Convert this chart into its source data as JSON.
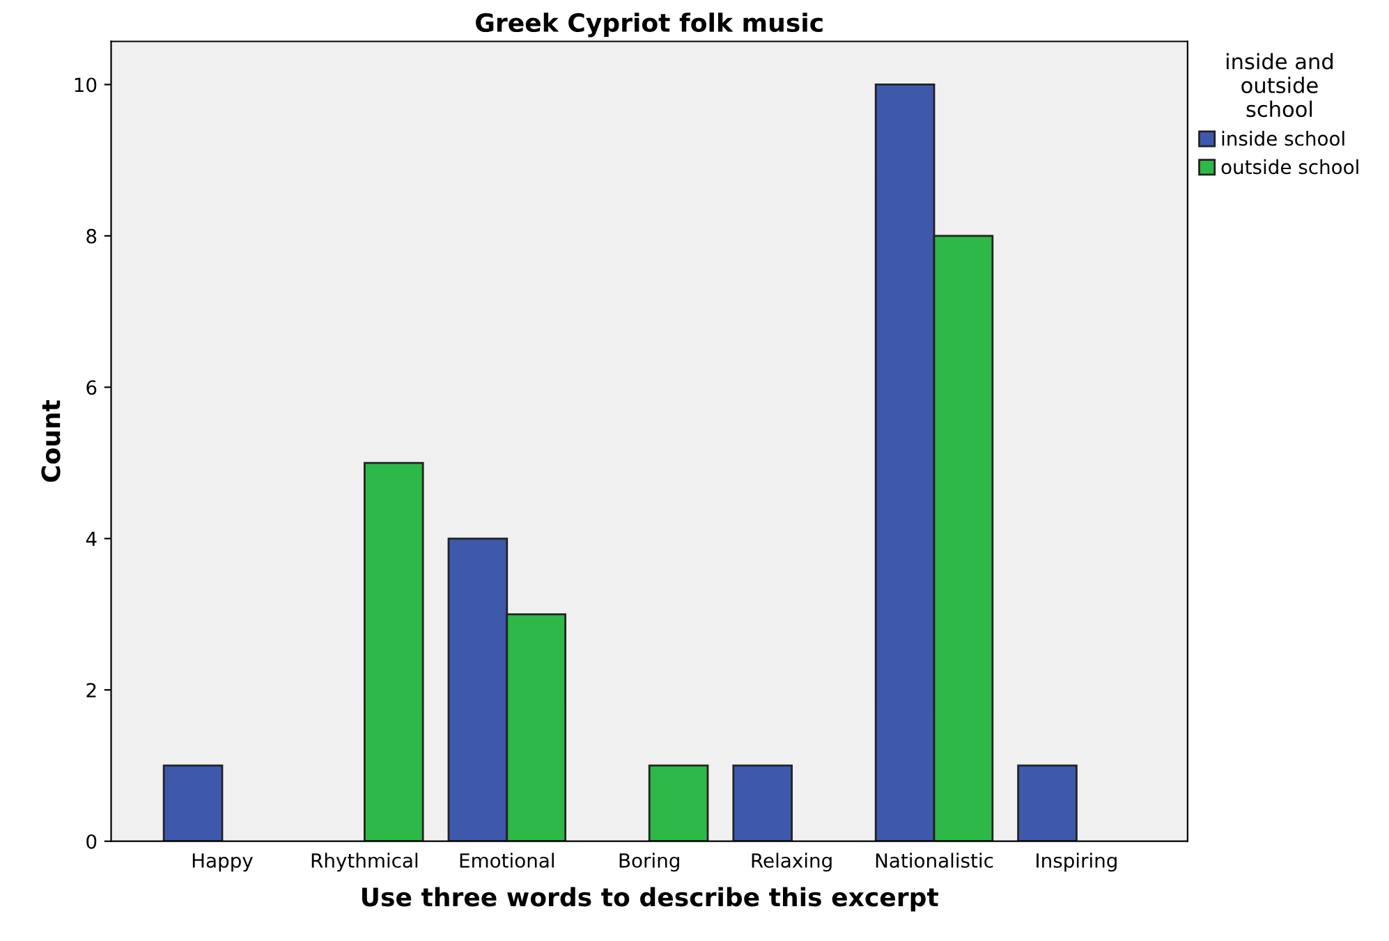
{
  "chart_data": {
    "type": "bar",
    "title": "Greek Cypriot folk music",
    "xlabel": "Use three words to describe this excerpt",
    "ylabel": "Count",
    "categories": [
      "Happy",
      "Rhythmical",
      "Emotional",
      "Boring",
      "Relaxing",
      "Nationalistic",
      "Inspiring"
    ],
    "series": [
      {
        "name": "inside school",
        "color": "#3e58ac",
        "values": [
          1,
          null,
          4,
          null,
          1,
          10,
          1
        ]
      },
      {
        "name": "outside school",
        "color": "#2eb848",
        "values": [
          null,
          5,
          3,
          1,
          null,
          8,
          null
        ]
      }
    ],
    "legend_title": "inside and\noutside\nschool",
    "legend": "top right",
    "ylim": [
      0,
      10.57
    ],
    "yticks": [
      0,
      2,
      4,
      6,
      8,
      10
    ],
    "grid": false
  }
}
